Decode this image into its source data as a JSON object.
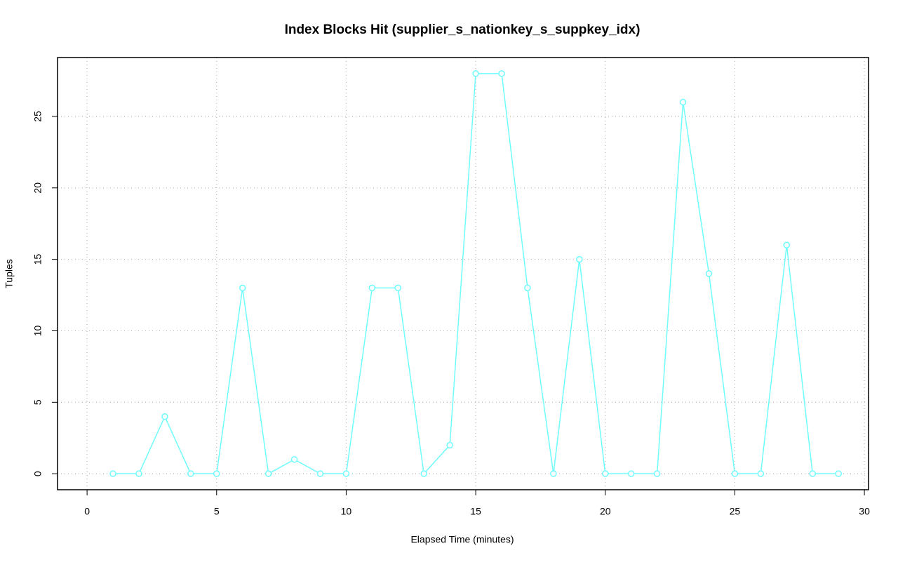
{
  "chart_data": {
    "type": "line",
    "title": "Index Blocks Hit (supplier_s_nationkey_s_suppkey_idx)",
    "xlabel": "Elapsed Time (minutes)",
    "ylabel": "Tuples",
    "x": [
      1,
      2,
      3,
      4,
      5,
      6,
      7,
      8,
      9,
      10,
      11,
      12,
      13,
      14,
      15,
      16,
      17,
      18,
      19,
      20,
      21,
      22,
      23,
      24,
      25,
      26,
      27,
      28,
      29
    ],
    "series": [
      {
        "color": "#6ffcfc",
        "values": [
          0,
          0,
          4,
          0,
          0,
          13,
          0,
          1,
          0,
          0,
          13,
          13,
          0,
          2,
          28,
          28,
          13,
          0,
          15,
          0,
          0,
          0,
          26,
          14,
          0,
          0,
          16,
          0,
          0
        ]
      }
    ],
    "xlim": [
      -1.14,
      30.16
    ],
    "ylim": [
      -1.12,
      29.12
    ],
    "xticks": [
      0,
      5,
      10,
      15,
      20,
      25,
      30
    ],
    "yticks": [
      0,
      5,
      10,
      15,
      20,
      25
    ],
    "grid": true
  }
}
